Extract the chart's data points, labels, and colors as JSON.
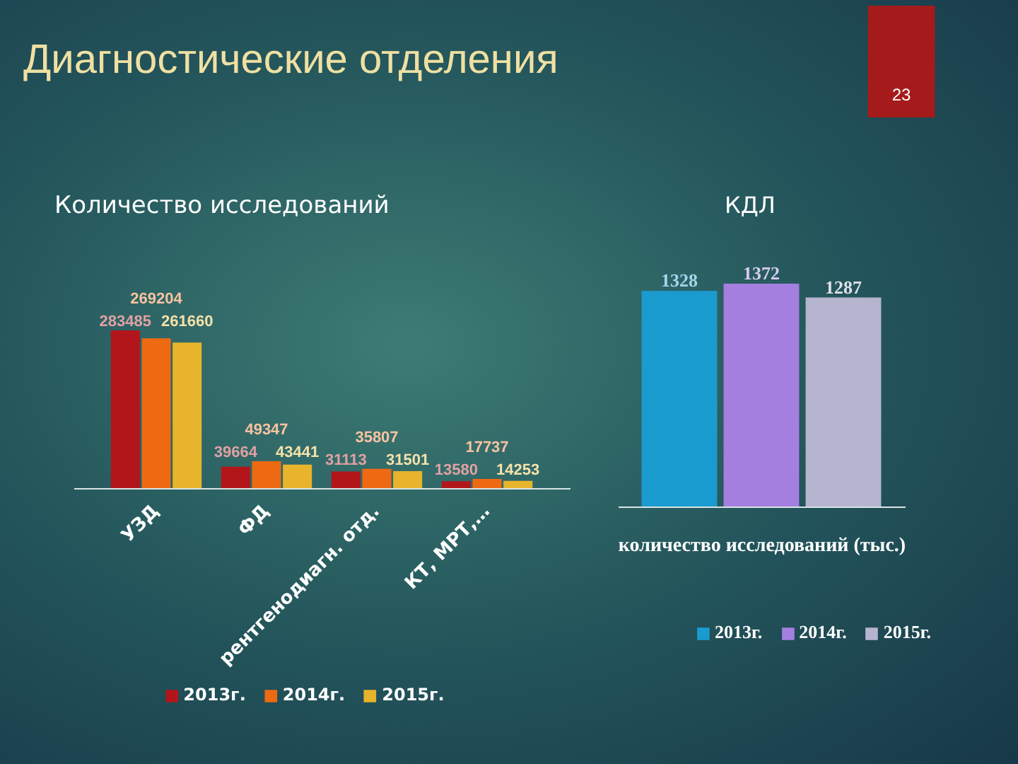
{
  "chart_data": [
    {
      "type": "bar",
      "title": "Диагностические отделения",
      "subtitle": "Количество исследований",
      "categories": [
        "УЗД",
        "ФД",
        "рентгенодиагн. отд.",
        "КТ, МРТ,…"
      ],
      "series": [
        {
          "name": "2013г.",
          "color": "#b3161a",
          "values": [
            283485,
            39664,
            31113,
            13580
          ]
        },
        {
          "name": "2014г.",
          "color": "#ee6a12",
          "values": [
            269204,
            49347,
            35807,
            17737
          ]
        },
        {
          "name": "2015г.",
          "color": "#e8b42c",
          "values": [
            261660,
            43441,
            31501,
            14253
          ]
        }
      ],
      "data_labels": true,
      "legend": "bottom",
      "tick_labels": "x"
    },
    {
      "type": "bar",
      "title": "КДЛ",
      "xlabel": "количество исследований (тыс.)",
      "categories": [
        null,
        null,
        null
      ],
      "series": [
        {
          "name": "2013г.",
          "color": "#1a9bd0",
          "values": [
            1328,
            null,
            null
          ]
        },
        {
          "name": "2014г.",
          "color": "#a47fe0",
          "values": [
            null,
            1372,
            null
          ]
        },
        {
          "name": "2015г.",
          "color": "#b5b5cf",
          "values": [
            null,
            null,
            1287
          ]
        }
      ],
      "stacked": true,
      "data_labels": true,
      "legend": "bottom",
      "tick_labels": false,
      "annotations": [
        "23"
      ]
    }
  ]
}
